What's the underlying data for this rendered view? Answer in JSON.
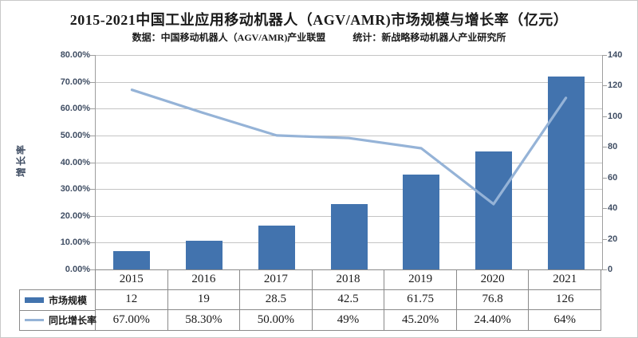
{
  "header": {
    "title": "2015-2021中国工业应用移动机器人（AGV/AMR)市场规模与增长率（亿元）",
    "source": "数据：中国移动机器人（AGV/AMR)产业联盟",
    "stat": "统计：新战略移动机器人产业研究所"
  },
  "chart_data": {
    "type": "bar",
    "subtype": "bar+line combo",
    "categories": [
      "2015",
      "2016",
      "2017",
      "2018",
      "2019",
      "2020",
      "2021"
    ],
    "series": [
      {
        "name": "市场规模",
        "type": "bar",
        "axis": "right",
        "values": [
          12,
          19,
          28.5,
          42.5,
          61.75,
          76.8,
          126
        ],
        "color": "#4273ae"
      },
      {
        "name": "同比增长率",
        "type": "line",
        "axis": "left",
        "values": [
          67,
          58.3,
          50,
          49,
          45.2,
          24.4,
          64
        ],
        "color": "#95b3d7"
      }
    ],
    "title": "2015-2021中国工业应用移动机器人（AGV/AMR)市场规模与增长率（亿元）",
    "xlabel": "",
    "ylabel_left": "增长率",
    "axes": {
      "left": {
        "min": 0,
        "max": 80,
        "step": 10,
        "tick_labels": [
          "80.00%",
          "70.00%",
          "60.00%",
          "50.00%",
          "40.00%",
          "30.00%",
          "20.00%",
          "10.00%",
          "0.00%"
        ]
      },
      "right": {
        "min": 0,
        "max": 140,
        "step": 20,
        "tick_labels": [
          "140",
          "120",
          "100",
          "80",
          "60",
          "40",
          "20",
          "0"
        ]
      }
    },
    "grid": "horizontal",
    "legend_position": "bottom-left table"
  },
  "table": {
    "year_row": [
      "2015",
      "2016",
      "2017",
      "2018",
      "2019",
      "2020",
      "2021"
    ],
    "rows": [
      {
        "legend": "市场规模",
        "swatch": "bar-swatch",
        "values": [
          "12",
          "19",
          "28.5",
          "42.5",
          "61.75",
          "76.8",
          "126"
        ]
      },
      {
        "legend": "同比增长率",
        "swatch": "line-swatch",
        "values": [
          "67.00%",
          "58.30%",
          "50.00%",
          "49%",
          "45.20%",
          "24.40%",
          "64%"
        ]
      }
    ]
  },
  "colors": {
    "bar": "#4273ae",
    "line": "#95b3d7",
    "axis_text": "#3f4d63",
    "gridline": "#c4c4c4",
    "axis_line": "#9e9e9e",
    "table_border": "#8a8a8a"
  }
}
